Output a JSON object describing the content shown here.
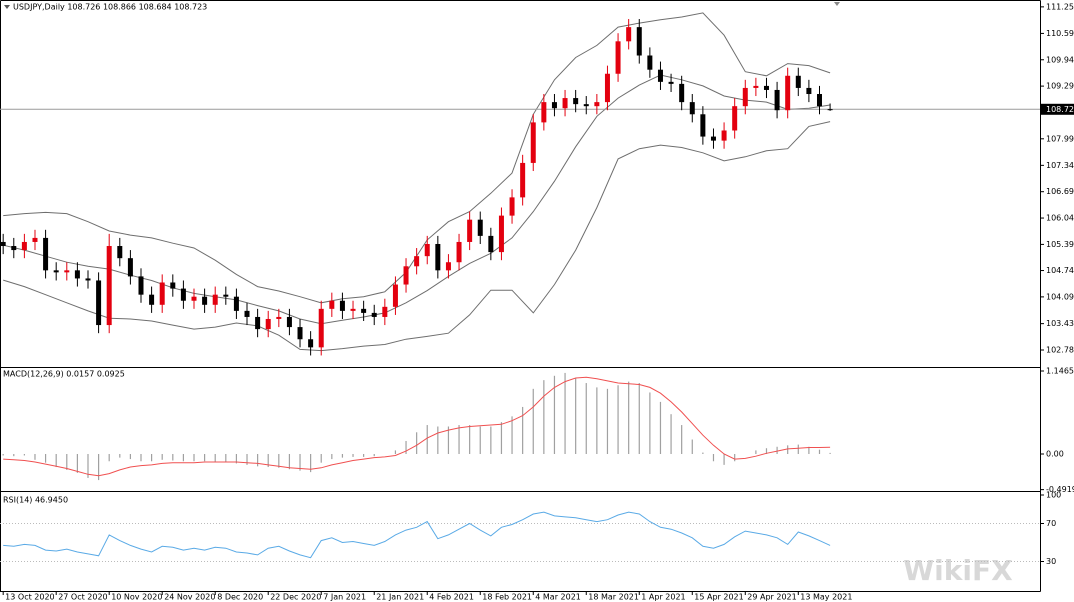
{
  "chart_data": [
    {
      "type": "candlestick",
      "title": "USDJPY,Daily  108.726 108.866 108.684 108.723",
      "bull_color": "#e3000f",
      "bear_color": "#000000",
      "band_color": "#6e6e6e",
      "xlim": [
        -0.6,
        195.6
      ],
      "ylim": [
        102.39,
        111.37
      ],
      "yticks": [
        {
          "value": 111.25,
          "label": "111.250"
        },
        110.595,
        109.945,
        109.295,
        107.995,
        {
          "value": 107.34,
          "label": "107.340"
        },
        {
          "value": 106.69,
          "label": "106.690"
        },
        {
          "value": 106.04,
          "label": "106.040"
        },
        {
          "value": 105.39,
          "label": "105.390"
        },
        104.745,
        104.095,
        103.435,
        102.785
      ],
      "last_price": 108.723,
      "x": [
        0,
        2,
        4,
        6,
        8,
        10,
        12,
        14,
        16,
        18,
        20,
        22,
        24,
        26,
        28,
        30,
        32,
        34,
        36,
        38,
        40,
        42,
        44,
        46,
        48,
        50,
        52,
        54,
        56,
        58,
        60,
        62,
        64,
        66,
        68,
        70,
        72,
        74,
        76,
        78,
        80,
        82,
        84,
        86,
        88,
        90,
        92,
        94,
        96,
        98,
        100,
        102,
        104,
        106,
        108,
        110,
        112,
        114,
        116,
        118,
        120,
        122,
        124,
        126,
        128,
        130,
        132,
        134,
        136,
        138,
        140,
        142,
        144,
        146,
        148,
        150,
        152,
        154,
        156
      ],
      "open": [
        105.45,
        105.35,
        105.25,
        105.45,
        105.55,
        104.75,
        104.7,
        104.75,
        104.55,
        104.5,
        103.4,
        105.35,
        105.05,
        104.6,
        104.15,
        103.9,
        104.45,
        104.3,
        104.0,
        104.1,
        103.9,
        104.15,
        104.1,
        103.75,
        103.6,
        103.3,
        103.55,
        103.6,
        103.35,
        103.05,
        102.85,
        103.8,
        104.0,
        103.75,
        103.8,
        103.7,
        103.6,
        103.85,
        104.4,
        104.85,
        105.1,
        105.4,
        104.75,
        104.95,
        105.45,
        106.0,
        105.6,
        105.2,
        106.1,
        106.55,
        107.4,
        108.4,
        108.9,
        108.75,
        109.0,
        108.85,
        108.8,
        108.9,
        109.6,
        110.4,
        110.75,
        110.05,
        109.7,
        109.4,
        109.35,
        108.9,
        108.6,
        108.05,
        107.95,
        108.2,
        108.8,
        109.25,
        109.3,
        109.2,
        108.7,
        109.55,
        109.25,
        109.1,
        108.726
      ],
      "high": [
        105.65,
        105.55,
        105.65,
        105.75,
        105.75,
        104.95,
        104.95,
        104.95,
        104.75,
        104.7,
        105.65,
        105.55,
        105.25,
        104.8,
        104.35,
        104.65,
        104.65,
        104.5,
        104.3,
        104.3,
        104.35,
        104.35,
        104.3,
        103.95,
        103.8,
        103.75,
        103.8,
        103.8,
        103.55,
        103.25,
        104.0,
        104.2,
        104.2,
        104.0,
        104.0,
        103.9,
        104.05,
        104.6,
        105.05,
        105.3,
        105.6,
        105.6,
        105.15,
        105.65,
        106.2,
        106.2,
        105.8,
        106.3,
        106.75,
        107.6,
        108.6,
        109.1,
        109.1,
        109.2,
        109.2,
        109.05,
        109.1,
        109.8,
        110.6,
        110.95,
        110.95,
        110.25,
        109.9,
        109.6,
        109.55,
        109.1,
        108.8,
        108.25,
        108.4,
        109.0,
        109.45,
        109.5,
        109.5,
        109.4,
        109.75,
        109.75,
        109.45,
        109.3,
        108.866
      ],
      "low": [
        105.15,
        105.05,
        105.05,
        105.25,
        104.55,
        104.5,
        104.5,
        104.35,
        104.3,
        103.2,
        103.2,
        104.85,
        104.4,
        103.95,
        103.7,
        103.7,
        104.1,
        103.8,
        103.8,
        103.7,
        103.7,
        103.9,
        103.55,
        103.4,
        103.1,
        103.1,
        103.35,
        103.15,
        102.85,
        102.65,
        102.65,
        103.6,
        103.55,
        103.55,
        103.5,
        103.4,
        103.4,
        103.65,
        104.2,
        104.65,
        104.9,
        104.55,
        104.55,
        104.75,
        105.25,
        105.4,
        105.0,
        105.0,
        105.9,
        106.35,
        107.2,
        108.2,
        108.55,
        108.55,
        108.65,
        108.6,
        108.6,
        108.7,
        109.4,
        110.2,
        109.85,
        109.5,
        109.2,
        109.15,
        108.7,
        108.4,
        107.85,
        107.75,
        107.75,
        108.0,
        108.6,
        109.05,
        109.0,
        108.5,
        108.5,
        109.05,
        108.9,
        108.6,
        108.684
      ],
      "close": [
        105.35,
        105.25,
        105.45,
        105.55,
        104.75,
        104.7,
        104.75,
        104.55,
        104.5,
        103.4,
        105.35,
        105.05,
        104.6,
        104.15,
        103.9,
        104.45,
        104.3,
        104.0,
        104.1,
        103.9,
        104.15,
        104.1,
        103.75,
        103.6,
        103.3,
        103.55,
        103.6,
        103.35,
        103.05,
        102.85,
        103.8,
        104.0,
        103.75,
        103.8,
        103.7,
        103.6,
        103.85,
        104.4,
        104.85,
        105.1,
        105.4,
        104.75,
        104.95,
        105.45,
        106.0,
        105.6,
        105.2,
        106.1,
        106.55,
        107.4,
        108.4,
        108.9,
        108.75,
        109.0,
        108.85,
        108.8,
        108.9,
        109.6,
        110.4,
        110.75,
        110.05,
        109.7,
        109.4,
        109.35,
        108.9,
        108.6,
        108.05,
        107.95,
        108.2,
        108.8,
        109.25,
        109.3,
        109.2,
        108.7,
        109.55,
        109.25,
        109.1,
        108.8,
        108.723
      ],
      "bands": {
        "x": [
          0,
          4,
          8,
          12,
          16,
          20,
          24,
          28,
          32,
          36,
          40,
          44,
          48,
          52,
          56,
          60,
          64,
          68,
          72,
          76,
          80,
          84,
          88,
          92,
          96,
          100,
          104,
          108,
          112,
          116,
          120,
          124,
          128,
          132,
          136,
          140,
          144,
          148,
          152,
          156
        ],
        "upper": [
          106.1,
          106.15,
          106.18,
          106.15,
          105.95,
          105.72,
          105.62,
          105.55,
          105.42,
          105.3,
          105.0,
          104.65,
          104.35,
          104.24,
          104.1,
          103.95,
          104.05,
          104.1,
          104.22,
          104.7,
          105.5,
          105.95,
          106.2,
          106.65,
          107.15,
          108.6,
          109.45,
          110.0,
          110.3,
          110.75,
          110.85,
          110.93,
          111.0,
          111.1,
          110.55,
          109.65,
          109.55,
          109.85,
          109.8,
          109.62
        ],
        "middle": [
          105.37,
          105.25,
          105.1,
          104.95,
          104.85,
          104.78,
          104.63,
          104.5,
          104.32,
          104.18,
          104.1,
          104.02,
          103.88,
          103.75,
          103.55,
          103.43,
          103.52,
          103.6,
          103.7,
          103.95,
          104.25,
          104.6,
          104.92,
          105.17,
          105.55,
          106.2,
          106.95,
          107.8,
          108.55,
          109.0,
          109.32,
          109.57,
          109.45,
          109.3,
          109.05,
          108.95,
          108.9,
          108.72,
          108.75,
          108.83
        ],
        "lower": [
          104.51,
          104.35,
          104.15,
          103.95,
          103.75,
          103.57,
          103.55,
          103.5,
          103.4,
          103.3,
          103.35,
          103.45,
          103.38,
          103.15,
          102.8,
          102.77,
          102.82,
          102.88,
          102.92,
          103.05,
          103.12,
          103.2,
          103.65,
          104.26,
          104.26,
          103.7,
          104.4,
          105.25,
          106.3,
          107.5,
          107.75,
          107.84,
          107.78,
          107.65,
          107.45,
          107.55,
          107.7,
          107.75,
          108.3,
          108.42
        ]
      }
    },
    {
      "type": "macd",
      "title": "MACD(12,26,9) 0.0157 0.0925",
      "histogram_color": "#a0a0a0",
      "signal_color": "#f05050",
      "xlim": [
        -0.6,
        195.6
      ],
      "ylim": [
        -0.497,
        1.174
      ],
      "yticks": [
        1.1465,
        {
          "value": 0,
          "label": "0.00"
        },
        -0.4919
      ],
      "x": [
        0,
        2,
        4,
        6,
        8,
        10,
        12,
        14,
        16,
        18,
        20,
        22,
        24,
        26,
        28,
        30,
        32,
        34,
        36,
        38,
        40,
        42,
        44,
        46,
        48,
        50,
        52,
        54,
        56,
        58,
        60,
        62,
        64,
        66,
        68,
        70,
        72,
        74,
        76,
        78,
        80,
        82,
        84,
        86,
        88,
        90,
        92,
        94,
        96,
        98,
        100,
        102,
        104,
        106,
        108,
        110,
        112,
        114,
        116,
        118,
        120,
        122,
        124,
        126,
        128,
        130,
        132,
        134,
        136,
        138,
        140,
        142,
        144,
        146,
        148,
        150,
        152,
        154,
        156
      ],
      "histogram": [
        -0.02,
        -0.03,
        -0.02,
        -0.08,
        -0.12,
        -0.18,
        -0.22,
        -0.26,
        -0.33,
        -0.36,
        -0.1,
        -0.05,
        -0.07,
        -0.1,
        -0.1,
        -0.08,
        -0.09,
        -0.1,
        -0.1,
        -0.1,
        -0.11,
        -0.11,
        -0.13,
        -0.15,
        -0.17,
        -0.18,
        -0.19,
        -0.21,
        -0.23,
        -0.25,
        -0.12,
        -0.07,
        -0.05,
        -0.04,
        -0.04,
        -0.03,
        0.0,
        0.05,
        0.18,
        0.3,
        0.4,
        0.38,
        0.38,
        0.4,
        0.4,
        0.38,
        0.38,
        0.44,
        0.52,
        0.65,
        0.9,
        1.02,
        1.08,
        1.12,
        1.05,
        0.98,
        0.92,
        0.9,
        0.95,
        1.0,
        0.98,
        0.85,
        0.72,
        0.55,
        0.4,
        0.2,
        0.02,
        -0.1,
        -0.15,
        -0.1,
        0.0,
        0.05,
        0.08,
        0.1,
        0.12,
        0.13,
        0.1,
        0.06,
        0.0157
      ],
      "signal": [
        -0.07,
        -0.08,
        -0.09,
        -0.11,
        -0.14,
        -0.17,
        -0.2,
        -0.24,
        -0.28,
        -0.3,
        -0.27,
        -0.22,
        -0.18,
        -0.16,
        -0.15,
        -0.13,
        -0.12,
        -0.12,
        -0.12,
        -0.11,
        -0.11,
        -0.11,
        -0.11,
        -0.12,
        -0.13,
        -0.15,
        -0.17,
        -0.19,
        -0.2,
        -0.21,
        -0.19,
        -0.15,
        -0.12,
        -0.09,
        -0.07,
        -0.05,
        -0.04,
        -0.02,
        0.04,
        0.12,
        0.22,
        0.29,
        0.33,
        0.36,
        0.38,
        0.39,
        0.4,
        0.41,
        0.46,
        0.53,
        0.65,
        0.8,
        0.92,
        1.0,
        1.05,
        1.06,
        1.04,
        1.01,
        0.98,
        0.97,
        0.96,
        0.92,
        0.84,
        0.72,
        0.58,
        0.42,
        0.26,
        0.12,
        0.0,
        -0.07,
        -0.06,
        -0.03,
        0.01,
        0.04,
        0.07,
        0.08,
        0.09,
        0.09,
        0.0925
      ]
    },
    {
      "type": "line",
      "title": "RSI(14) 46.9450",
      "color": "#5aaae6",
      "level_style": "dotted",
      "xlim": [
        -0.6,
        195.6
      ],
      "ylim": [
        0,
        100
      ],
      "yticks": [
        100,
        70,
        30
      ],
      "x": [
        0,
        2,
        4,
        6,
        8,
        10,
        12,
        14,
        16,
        18,
        20,
        22,
        24,
        26,
        28,
        30,
        32,
        34,
        36,
        38,
        40,
        42,
        44,
        46,
        48,
        50,
        52,
        54,
        56,
        58,
        60,
        62,
        64,
        66,
        68,
        70,
        72,
        74,
        76,
        78,
        80,
        82,
        84,
        86,
        88,
        90,
        92,
        94,
        96,
        98,
        100,
        102,
        104,
        106,
        108,
        110,
        112,
        114,
        116,
        118,
        120,
        122,
        124,
        126,
        128,
        130,
        132,
        134,
        136,
        138,
        140,
        142,
        144,
        146,
        148,
        150,
        152,
        154,
        156
      ],
      "values": [
        47,
        46,
        48,
        47,
        42,
        41,
        43,
        40,
        38,
        36,
        58,
        52,
        47,
        43,
        40,
        46,
        45,
        42,
        44,
        42,
        45,
        44,
        40,
        39,
        37,
        44,
        46,
        41,
        37,
        34,
        52,
        55,
        50,
        51,
        49,
        47,
        51,
        58,
        63,
        66,
        72,
        54,
        58,
        64,
        70,
        63,
        57,
        66,
        69,
        74,
        80,
        82,
        78,
        77,
        76,
        74,
        72,
        74,
        79,
        82,
        80,
        72,
        66,
        64,
        60,
        55,
        46,
        44,
        48,
        56,
        62,
        60,
        58,
        55,
        48,
        61,
        57,
        52,
        46.945
      ],
      "xticks": [
        {
          "value": 0,
          "label": "13 Oct 2020"
        },
        {
          "value": 10,
          "label": "27 Oct 2020"
        },
        {
          "value": 20,
          "label": "10 Nov 2020"
        },
        {
          "value": 30,
          "label": "24 Nov 2020"
        },
        {
          "value": 40,
          "label": "8 Dec 2020"
        },
        {
          "value": 50,
          "label": "22 Dec 2020"
        },
        {
          "value": 60,
          "label": "7 Jan 2021"
        },
        {
          "value": 70,
          "label": "21 Jan 2021"
        },
        {
          "value": 80,
          "label": "4 Feb 2021"
        },
        {
          "value": 90,
          "label": "18 Feb 2021"
        },
        {
          "value": 100,
          "label": "4 Mar 2021"
        },
        {
          "value": 110,
          "label": "18 Mar 2021"
        },
        {
          "value": 120,
          "label": "1 Apr 2021"
        },
        {
          "value": 130,
          "label": "15 Apr 2021"
        },
        {
          "value": 140,
          "label": "29 Apr 2021"
        },
        {
          "value": 150,
          "label": "13 May 2021"
        }
      ]
    }
  ],
  "watermark": "WikiFX"
}
